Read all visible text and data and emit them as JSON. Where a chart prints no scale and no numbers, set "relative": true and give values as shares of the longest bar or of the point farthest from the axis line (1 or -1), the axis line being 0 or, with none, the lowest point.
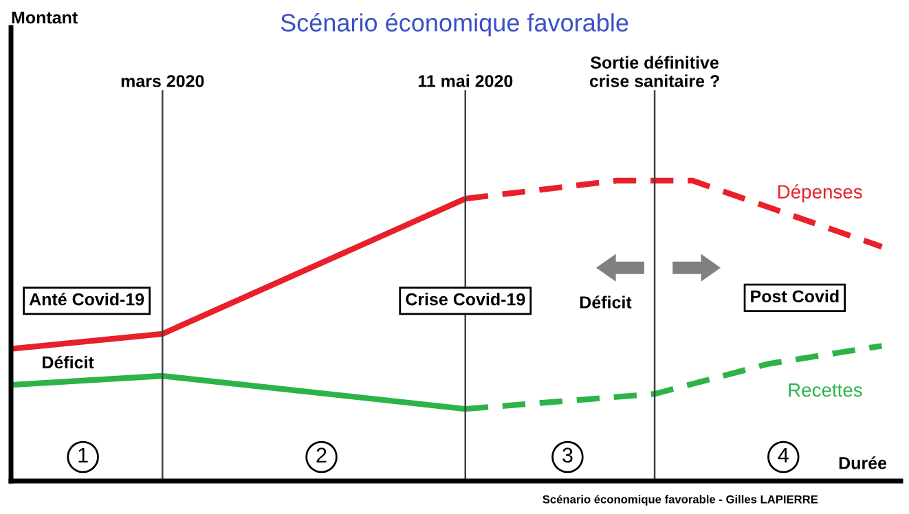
{
  "chart_data": {
    "type": "line",
    "relative": true,
    "grid": "x",
    "title": "Scénario économique favorable",
    "xlabel": "Durée",
    "categories": [
      null,
      null,
      null,
      null,
      null,
      null,
      null,
      null,
      null,
      null,
      null,
      null,
      null,
      null,
      null,
      null,
      null,
      null,
      null,
      null,
      null,
      null,
      null,
      null
    ],
    "series": [
      {
        "color": "#e8202a",
        "values": [
          0.44,
          null,
          null,
          null,
          0.49,
          null,
          null,
          null,
          null,
          null,
          null,
          null,
          0.94,
          null,
          null,
          null,
          null,
          null,
          null,
          null,
          null,
          null,
          null,
          null
        ],
        "line_style": "solid"
      },
      {
        "name": "Dépenses",
        "color": "#e8202a",
        "values": [
          null,
          null,
          null,
          null,
          null,
          null,
          null,
          null,
          null,
          null,
          null,
          null,
          0.94,
          null,
          null,
          null,
          1.0,
          null,
          1.0,
          null,
          null,
          null,
          null,
          0.78
        ],
        "line_style": "dashed"
      },
      {
        "color": "#2db34a",
        "values": [
          0.32,
          null,
          null,
          null,
          0.35,
          null,
          null,
          null,
          null,
          null,
          null,
          null,
          0.24,
          null,
          null,
          null,
          null,
          null,
          null,
          null,
          null,
          null,
          null,
          null
        ],
        "line_style": "solid"
      },
      {
        "name": "Recettes",
        "color": "#2db34a",
        "values": [
          null,
          null,
          null,
          null,
          null,
          null,
          null,
          null,
          null,
          null,
          null,
          null,
          0.24,
          null,
          null,
          null,
          null,
          0.29,
          null,
          null,
          0.39,
          null,
          null,
          0.45
        ],
        "line_style": "dashed"
      }
    ],
    "annotations": [
      "Montant",
      "mars 2020",
      "11 mai 2020",
      "Sortie définitive\ncrise sanitaire ?",
      "Anté Covid-19",
      "Crise Covid-19",
      "Post Covid",
      "Déficit",
      "Déficit",
      "1",
      "2",
      "3",
      "4",
      "Scénario économique favorable - Gilles LAPIERRE"
    ]
  }
}
